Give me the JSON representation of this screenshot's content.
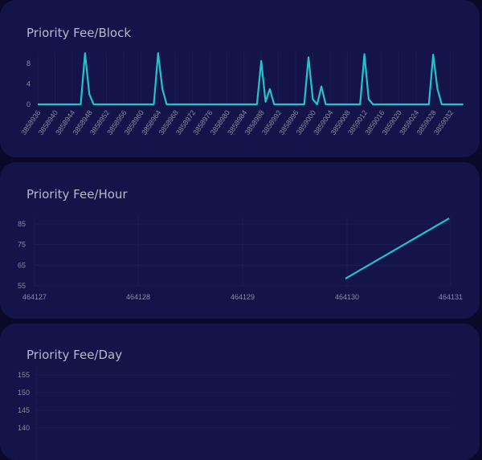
{
  "colors": {
    "background": "#0a0a28",
    "card": "#14144a",
    "line": "#22c4cc",
    "text": "#b8b8c8",
    "tick": "#8a8aa0"
  },
  "chart_data": [
    {
      "type": "line",
      "title": "Priority Fee/Block",
      "x_start": 3858936,
      "x_tick_labels": [
        "3858936",
        "3858940",
        "3858944",
        "3858948",
        "3858952",
        "3858956",
        "3858960",
        "3858964",
        "3858968",
        "3858972",
        "3858976",
        "3858980",
        "3858984",
        "3858988",
        "3858992",
        "3858996",
        "3859000",
        "3859004",
        "3859008",
        "3859012",
        "3859016",
        "3859020",
        "3859024",
        "3859028",
        "3859032"
      ],
      "y_ticks": [
        0,
        4,
        8
      ],
      "ylim": [
        0,
        10.2
      ],
      "grid": true,
      "values": [
        0,
        0,
        0,
        0,
        0,
        0,
        0,
        0,
        0,
        0,
        0,
        10,
        2,
        0,
        0,
        0,
        0,
        0,
        0,
        0,
        0,
        0,
        0,
        0,
        0,
        0,
        0,
        0,
        10,
        3,
        0,
        0,
        0,
        0,
        0,
        0,
        0,
        0,
        0,
        0,
        0,
        0,
        0,
        0,
        0,
        0,
        0,
        0,
        0,
        0,
        0,
        0,
        8.5,
        0.5,
        3,
        0,
        0,
        0,
        0,
        0,
        0,
        0,
        0,
        9.2,
        1,
        0,
        3.5,
        0,
        0,
        0,
        0,
        0,
        0,
        0,
        0,
        0,
        9.8,
        1,
        0,
        0,
        0,
        0,
        0,
        0,
        0,
        0,
        0,
        0,
        0,
        0,
        0,
        0,
        9.7,
        3,
        0,
        0,
        0,
        0,
        0,
        0
      ]
    },
    {
      "type": "line",
      "title": "Priority Fee/Hour",
      "x_tick_labels": [
        "464127",
        "464128",
        "464129",
        "464130",
        "464131"
      ],
      "y_ticks": [
        55,
        65,
        75,
        85
      ],
      "ylim": [
        55,
        89
      ],
      "grid": true,
      "points": [
        {
          "x": 464130,
          "y": 58.5
        },
        {
          "x": 464131,
          "y": 87.7
        }
      ]
    },
    {
      "type": "line",
      "title": "Priority Fee/Day",
      "y_ticks": [
        140,
        145,
        150,
        155
      ],
      "grid": true,
      "points": []
    }
  ]
}
